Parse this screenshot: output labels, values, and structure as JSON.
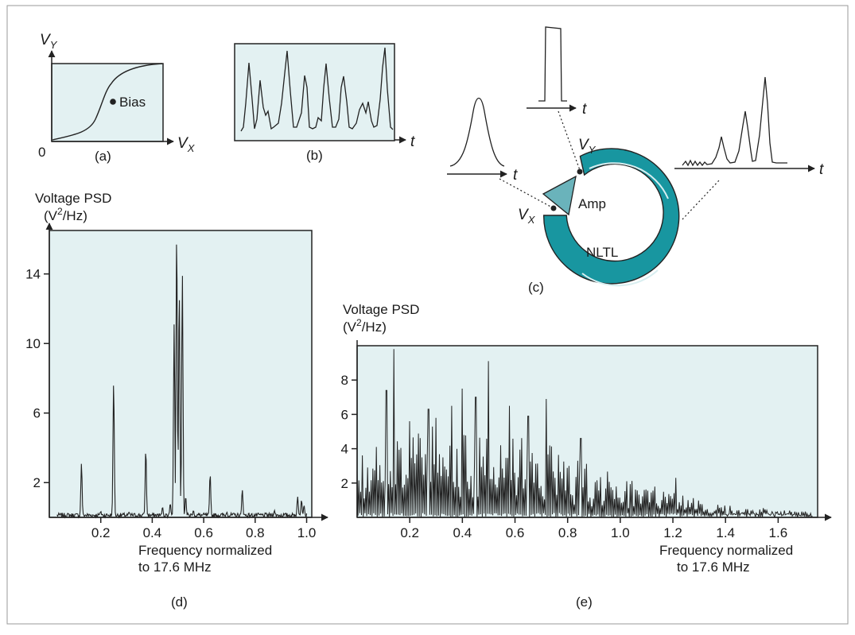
{
  "colors": {
    "panel_bg": "#e3f1f2",
    "ring": "#1896a0",
    "amp": "#6ab3bb",
    "border": "#222222",
    "frame_bg": "#ffffff",
    "outer_frame": "#9a9a9a"
  },
  "panel_a": {
    "y_label": "V",
    "y_sub": "Y",
    "x_label": "V",
    "x_sub": "X",
    "origin": "0",
    "point_label": "Bias",
    "caption": "(a)"
  },
  "panel_b": {
    "t_label": "t",
    "caption": "(b)"
  },
  "panel_c": {
    "t_input": "t",
    "t_pulse": "t",
    "t_output": "t",
    "vy_label": "V",
    "vy_sub": "Y",
    "vx_label": "V",
    "vx_sub": "X",
    "amp_label": "Amp",
    "nltl_label": "NLTL",
    "caption": "(c)"
  },
  "chart_data": [
    {
      "panel": "d",
      "type": "line",
      "ylabel_line1": "Voltage PSD",
      "ylabel_line2_pre": "(V",
      "ylabel_line2_sup": "2",
      "ylabel_line2_post": "/Hz)",
      "xlabel_line1": "Frequency normalized",
      "xlabel_line2": "to 17.6 MHz",
      "caption": "(d)",
      "xlim": [
        0.0,
        1.02
      ],
      "ylim": [
        0,
        16.5
      ],
      "x_ticks": [
        "0.2",
        "0.4",
        "0.6",
        "0.8",
        "1.0"
      ],
      "x_tick_values": [
        0.2,
        0.4,
        0.6,
        0.8,
        1.0
      ],
      "y_ticks": [
        "2",
        "6",
        "10",
        "14"
      ],
      "y_tick_values": [
        2,
        6,
        10,
        14
      ],
      "peaks": [
        [
          0.125,
          3.1
        ],
        [
          0.2,
          0.35
        ],
        [
          0.25,
          7.8
        ],
        [
          0.31,
          0.3
        ],
        [
          0.375,
          3.9
        ],
        [
          0.44,
          0.6
        ],
        [
          0.47,
          0.8
        ],
        [
          0.485,
          11.1
        ],
        [
          0.495,
          16.5
        ],
        [
          0.505,
          13.1
        ],
        [
          0.517,
          14.0
        ],
        [
          0.53,
          1.2
        ],
        [
          0.56,
          0.4
        ],
        [
          0.625,
          2.5
        ],
        [
          0.69,
          0.3
        ],
        [
          0.75,
          1.6
        ],
        [
          0.875,
          0.4
        ],
        [
          0.965,
          1.2
        ],
        [
          0.98,
          1.0
        ],
        [
          0.99,
          0.7
        ]
      ]
    },
    {
      "panel": "e",
      "type": "line",
      "ylabel_line1": "Voltage PSD",
      "ylabel_line2_pre": "(V",
      "ylabel_line2_sup": "2",
      "ylabel_line2_post": "/Hz)",
      "xlabel_line1": "Frequency normalized",
      "xlabel_line2": "to 17.6 MHz",
      "caption": "(e)",
      "xlim": [
        0.0,
        1.75
      ],
      "ylim": [
        0,
        10
      ],
      "x_ticks": [
        "0.2",
        "0.4",
        "0.6",
        "0.8",
        "1.0",
        "1.2",
        "1.4",
        "1.6"
      ],
      "x_tick_values": [
        0.2,
        0.4,
        0.6,
        0.8,
        1.0,
        1.2,
        1.4,
        1.6
      ],
      "y_ticks": [
        "2",
        "4",
        "6",
        "8"
      ],
      "y_tick_values": [
        2,
        4,
        6,
        8
      ],
      "peaks": [
        [
          0.11,
          7.4
        ],
        [
          0.14,
          9.8
        ],
        [
          0.2,
          5.6
        ],
        [
          0.27,
          6.3
        ],
        [
          0.3,
          5.8
        ],
        [
          0.36,
          6.5
        ],
        [
          0.4,
          7.5
        ],
        [
          0.45,
          7.0
        ],
        [
          0.5,
          9.1
        ],
        [
          0.58,
          6.5
        ],
        [
          0.65,
          5.9
        ],
        [
          0.72,
          6.9
        ],
        [
          0.85,
          4.6
        ],
        [
          1.21,
          2.3
        ]
      ],
      "envelope": [
        [
          0.0,
          2.8
        ],
        [
          0.15,
          4.2
        ],
        [
          0.5,
          4.0
        ],
        [
          0.8,
          3.0
        ],
        [
          1.0,
          2.0
        ],
        [
          1.2,
          1.1
        ],
        [
          1.4,
          0.6
        ],
        [
          1.6,
          0.35
        ],
        [
          1.75,
          0.25
        ]
      ]
    }
  ]
}
